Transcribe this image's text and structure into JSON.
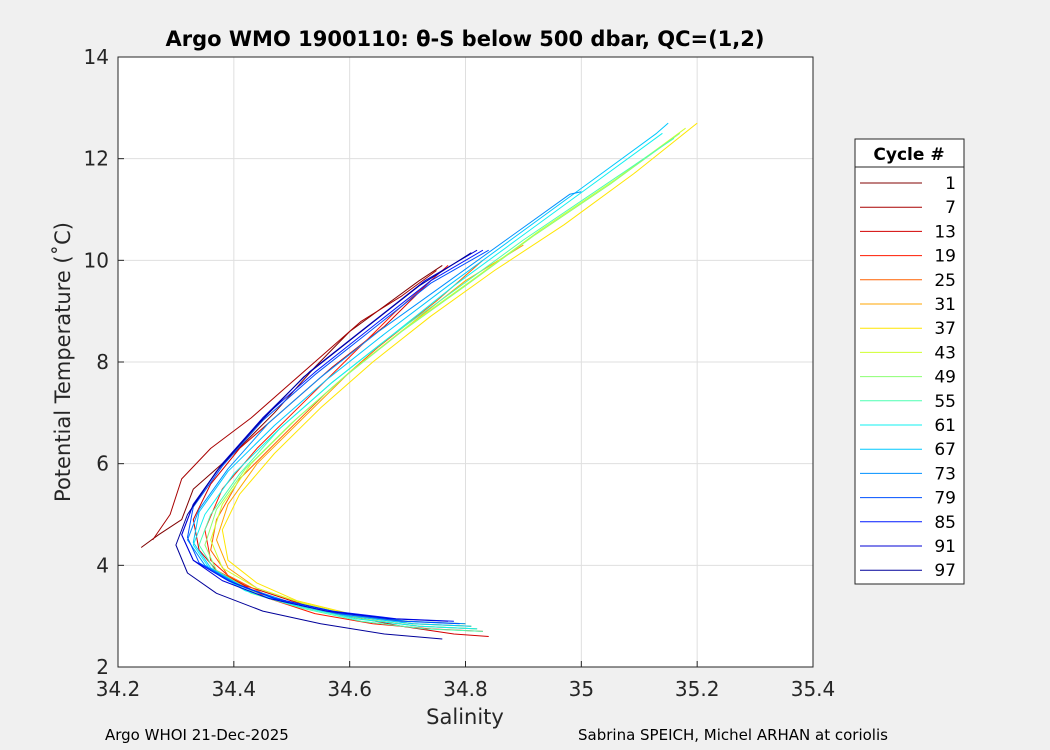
{
  "chart_data": {
    "type": "line",
    "title": "Argo WMO 1900110: θ-S below 500 dbar,  QC=(1,2)",
    "xlabel": "Salinity",
    "ylabel": "Potential Temperature (˚C)",
    "xlim": [
      34.2,
      35.4
    ],
    "ylim": [
      2,
      14
    ],
    "xticks": [
      "34.2",
      "34.4",
      "34.6",
      "34.8",
      "35",
      "35.2",
      "35.4"
    ],
    "yticks": [
      "2",
      "4",
      "6",
      "8",
      "10",
      "12",
      "14"
    ],
    "grid": true,
    "legend": {
      "title": "Cycle #",
      "placement": "right",
      "entries": [
        {
          "label": "1",
          "color": "#800000"
        },
        {
          "label": "7",
          "color": "#a80000"
        },
        {
          "label": "13",
          "color": "#d20000"
        },
        {
          "label": "19",
          "color": "#ff1a00"
        },
        {
          "label": "25",
          "color": "#ff6000"
        },
        {
          "label": "31",
          "color": "#ffa600"
        },
        {
          "label": "37",
          "color": "#ffe600"
        },
        {
          "label": "43",
          "color": "#d0ff2f"
        },
        {
          "label": "49",
          "color": "#8cff73"
        },
        {
          "label": "55",
          "color": "#4dffb2"
        },
        {
          "label": "61",
          "color": "#0ff0f0"
        },
        {
          "label": "67",
          "color": "#00c8ff"
        },
        {
          "label": "73",
          "color": "#0090ff"
        },
        {
          "label": "79",
          "color": "#0050ff"
        },
        {
          "label": "85",
          "color": "#0018ff"
        },
        {
          "label": "91",
          "color": "#0000d6"
        },
        {
          "label": "97",
          "color": "#00009a"
        }
      ]
    },
    "series": [
      {
        "name": "1",
        "x": [
          34.24,
          34.27,
          34.31,
          34.33,
          34.4,
          34.47,
          34.54,
          34.6,
          34.66,
          34.72,
          34.76
        ],
        "y": [
          4.35,
          4.6,
          4.9,
          5.5,
          6.2,
          7.0,
          7.9,
          8.6,
          9.1,
          9.6,
          9.9
        ]
      },
      {
        "name": "7",
        "x": [
          34.26,
          34.29,
          34.31,
          34.36,
          34.43,
          34.5,
          34.56,
          34.62,
          34.69,
          34.75
        ],
        "y": [
          4.5,
          5.0,
          5.7,
          6.3,
          6.9,
          7.6,
          8.2,
          8.8,
          9.3,
          9.8
        ]
      },
      {
        "name": "13",
        "x": [
          34.84,
          34.78,
          34.69,
          34.6,
          34.5,
          34.42,
          34.37,
          34.34,
          34.33,
          34.36,
          34.41,
          34.49,
          34.57,
          34.66,
          34.74
        ],
        "y": [
          2.6,
          2.65,
          2.8,
          3.0,
          3.3,
          3.6,
          3.9,
          4.3,
          4.9,
          5.6,
          6.3,
          7.1,
          7.9,
          8.7,
          9.6
        ]
      },
      {
        "name": "19",
        "x": [
          34.83,
          34.74,
          34.64,
          34.54,
          34.46,
          34.4,
          34.36,
          34.35,
          34.38,
          34.44,
          34.52,
          34.6,
          34.68,
          34.77
        ],
        "y": [
          2.7,
          2.75,
          2.85,
          3.05,
          3.35,
          3.7,
          4.1,
          4.7,
          5.5,
          6.3,
          7.2,
          8.1,
          9.0,
          9.9
        ]
      },
      {
        "name": "25",
        "x": [
          34.82,
          34.72,
          34.62,
          34.53,
          34.45,
          34.39,
          34.36,
          34.37,
          34.41,
          34.48,
          34.56,
          34.65,
          34.75,
          34.83
        ],
        "y": [
          2.75,
          2.8,
          2.95,
          3.15,
          3.45,
          3.8,
          4.3,
          4.9,
          5.7,
          6.5,
          7.4,
          8.3,
          9.2,
          10.0
        ]
      },
      {
        "name": "31",
        "x": [
          34.81,
          34.71,
          34.61,
          34.52,
          34.44,
          34.39,
          34.37,
          34.39,
          34.44,
          34.52,
          34.6,
          34.7,
          34.8,
          34.9
        ],
        "y": [
          2.8,
          2.85,
          3.0,
          3.25,
          3.55,
          3.95,
          4.5,
          5.2,
          6.0,
          6.9,
          7.8,
          8.7,
          9.6,
          10.3
        ]
      },
      {
        "name": "37",
        "x": [
          34.8,
          34.7,
          34.6,
          34.51,
          34.44,
          34.39,
          34.38,
          34.41,
          34.47,
          34.55,
          34.64,
          34.74,
          34.85,
          34.97,
          35.09,
          35.2
        ],
        "y": [
          2.85,
          2.9,
          3.05,
          3.3,
          3.65,
          4.1,
          4.7,
          5.4,
          6.2,
          7.1,
          8.0,
          8.9,
          9.8,
          10.7,
          11.7,
          12.7
        ]
      },
      {
        "name": "43",
        "x": [
          34.81,
          34.71,
          34.61,
          34.52,
          34.44,
          34.38,
          34.36,
          34.38,
          34.43,
          34.51,
          34.6,
          34.7,
          34.81,
          34.93,
          35.06,
          35.18
        ],
        "y": [
          2.8,
          2.85,
          3.0,
          3.25,
          3.55,
          3.95,
          4.5,
          5.2,
          6.0,
          6.9,
          7.8,
          8.7,
          9.6,
          10.6,
          11.6,
          12.6
        ]
      },
      {
        "name": "49",
        "x": [
          34.82,
          34.72,
          34.62,
          34.52,
          34.43,
          34.37,
          34.35,
          34.37,
          34.42,
          34.5,
          34.59,
          34.69,
          34.8,
          34.92,
          35.05,
          35.17
        ],
        "y": [
          2.75,
          2.8,
          2.95,
          3.2,
          3.5,
          3.9,
          4.4,
          5.1,
          5.9,
          6.8,
          7.7,
          8.6,
          9.5,
          10.5,
          11.5,
          12.5
        ]
      },
      {
        "name": "55",
        "x": [
          34.83,
          34.73,
          34.62,
          34.52,
          34.43,
          34.37,
          34.34,
          34.36,
          34.41,
          34.48,
          34.57,
          34.67,
          34.78,
          34.9,
          35.03,
          35.16
        ],
        "y": [
          2.7,
          2.75,
          2.9,
          3.15,
          3.45,
          3.85,
          4.4,
          5.0,
          5.8,
          6.7,
          7.6,
          8.5,
          9.4,
          10.4,
          11.4,
          12.4
        ]
      },
      {
        "name": "61",
        "x": [
          34.82,
          34.72,
          34.61,
          34.51,
          34.42,
          34.36,
          34.33,
          34.35,
          34.4,
          34.48,
          34.57,
          34.67,
          34.78,
          34.9,
          35.02,
          35.14
        ],
        "y": [
          2.75,
          2.8,
          2.95,
          3.2,
          3.5,
          3.9,
          4.4,
          5.0,
          5.8,
          6.7,
          7.6,
          8.5,
          9.5,
          10.5,
          11.5,
          12.5
        ]
      },
      {
        "name": "67",
        "x": [
          34.81,
          34.71,
          34.6,
          34.5,
          34.42,
          34.36,
          34.33,
          34.34,
          34.39,
          34.47,
          34.56,
          34.66,
          34.77,
          34.89,
          35.01,
          35.13,
          35.15
        ],
        "y": [
          2.8,
          2.85,
          3.0,
          3.25,
          3.55,
          3.95,
          4.45,
          5.05,
          5.85,
          6.75,
          7.65,
          8.55,
          9.5,
          10.5,
          11.5,
          12.5,
          12.7
        ]
      },
      {
        "name": "73",
        "x": [
          34.8,
          34.7,
          34.59,
          34.49,
          34.41,
          34.35,
          34.32,
          34.34,
          34.39,
          34.46,
          34.55,
          34.65,
          34.76,
          34.87,
          34.98,
          35.0
        ],
        "y": [
          2.85,
          2.9,
          3.05,
          3.3,
          3.6,
          4.0,
          4.5,
          5.1,
          5.9,
          6.8,
          7.7,
          8.6,
          9.5,
          10.4,
          11.3,
          11.35
        ]
      },
      {
        "name": "79",
        "x": [
          34.79,
          34.69,
          34.58,
          34.48,
          34.4,
          34.34,
          34.32,
          34.33,
          34.38,
          34.45,
          34.54,
          34.64,
          34.74,
          34.84
        ],
        "y": [
          2.85,
          2.9,
          3.05,
          3.3,
          3.65,
          4.05,
          4.55,
          5.15,
          5.95,
          6.85,
          7.75,
          8.65,
          9.55,
          10.2
        ]
      },
      {
        "name": "85",
        "x": [
          34.78,
          34.68,
          34.57,
          34.47,
          34.39,
          34.33,
          34.31,
          34.33,
          34.38,
          34.45,
          34.54,
          34.64,
          34.74,
          34.83
        ],
        "y": [
          2.9,
          2.95,
          3.1,
          3.35,
          3.7,
          4.1,
          4.6,
          5.2,
          6.0,
          6.9,
          7.8,
          8.7,
          9.6,
          10.2
        ]
      },
      {
        "name": "91",
        "x": [
          34.77,
          34.67,
          34.56,
          34.46,
          34.38,
          34.33,
          34.31,
          34.33,
          34.38,
          34.45,
          34.53,
          34.63,
          34.73,
          34.82
        ],
        "y": [
          2.9,
          2.95,
          3.1,
          3.35,
          3.7,
          4.1,
          4.6,
          5.2,
          6.0,
          6.9,
          7.8,
          8.7,
          9.6,
          10.2
        ]
      },
      {
        "name": "97",
        "x": [
          34.76,
          34.66,
          34.55,
          34.45,
          34.37,
          34.32,
          34.3,
          34.32,
          34.37,
          34.44,
          34.52,
          34.62,
          34.72,
          34.81
        ],
        "y": [
          2.55,
          2.65,
          2.85,
          3.1,
          3.45,
          3.85,
          4.4,
          5.0,
          5.85,
          6.75,
          7.7,
          8.6,
          9.5,
          10.15
        ]
      }
    ]
  },
  "footer": {
    "left": "Argo WHOI 21-Dec-2025",
    "right": "Sabrina SPEICH, Michel ARHAN at coriolis"
  }
}
